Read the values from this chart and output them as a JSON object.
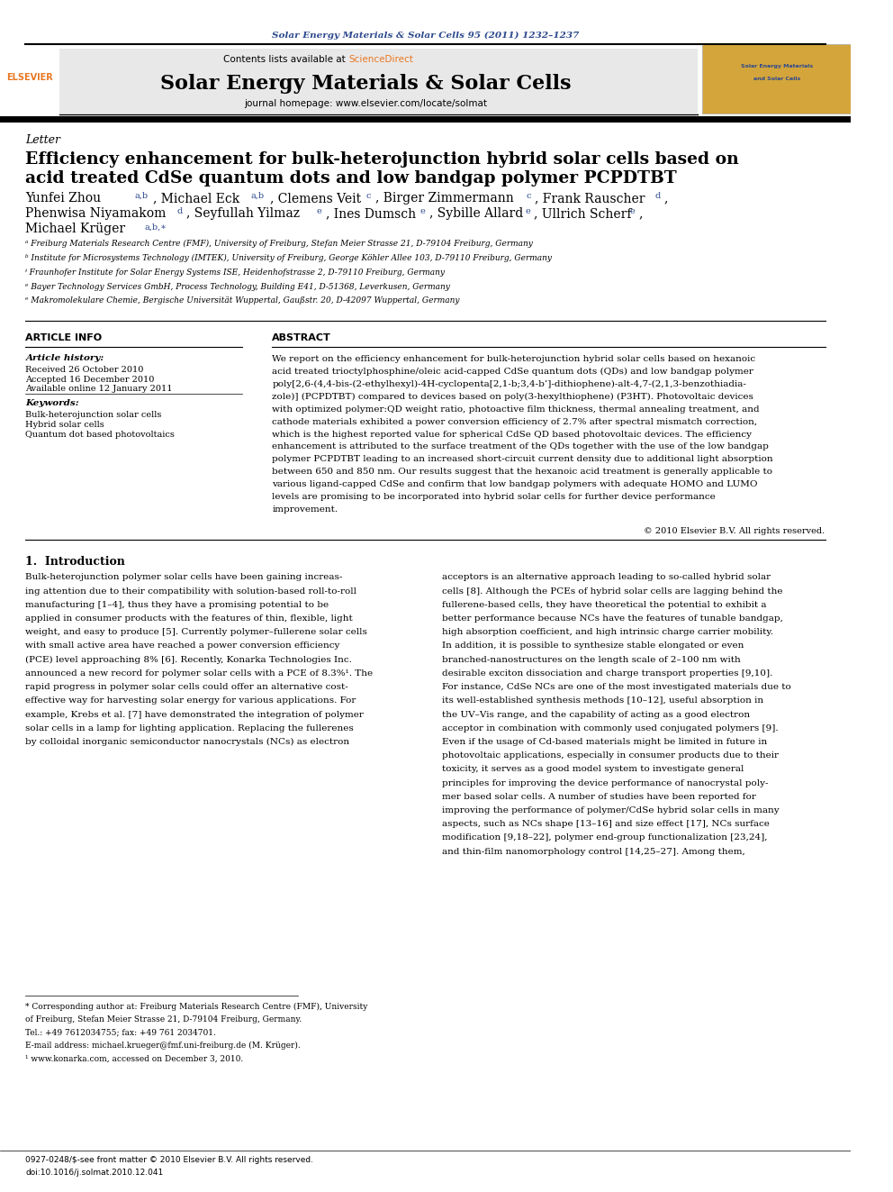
{
  "bg_color": "#ffffff",
  "page_width": 9.92,
  "page_height": 13.23,
  "journal_ref": "Solar Energy Materials & Solar Cells 95 (2011) 1232–1237",
  "journal_ref_color": "#2e4a8e",
  "contents_text": "Contents lists available at ",
  "sciencedirect_text": "ScienceDirect",
  "sciencedirect_color": "#e87722",
  "journal_name": "Solar Energy Materials & Solar Cells",
  "journal_homepage": "journal homepage: www.elsevier.com/locate/solmat",
  "journal_homepage_color": "#2e4a8e",
  "section_label": "Letter",
  "article_title_line1": "Efficiency enhancement for bulk-heterojunction hybrid solar cells based on",
  "article_title_line2": "acid treated CdSe quantum dots and low bandgap polymer PCPDTBT",
  "aff_a": "ᵃ Freiburg Materials Research Centre (FMF), University of Freiburg, Stefan Meier Strasse 21, D-79104 Freiburg, Germany",
  "aff_b": "ᵇ Institute for Microsystems Technology (IMTEK), University of Freiburg, George Köhler Allee 103, D-79110 Freiburg, Germany",
  "aff_c": "ᶤ Fraunhofer Institute for Solar Energy Systems ISE, Heidenhofstrasse 2, D-79110 Freiburg, Germany",
  "aff_d": "ᵉ Bayer Technology Services GmbH, Process Technology, Building E41, D-51368, Leverkusen, Germany",
  "aff_e": "ᵉ Makromolekulare Chemie, Bergische Universität Wuppertal, Gaußstr. 20, D-42097 Wuppertal, Germany",
  "article_info_title": "ARTICLE INFO",
  "article_history_title": "Article history:",
  "received": "Received 26 October 2010",
  "accepted": "Accepted 16 December 2010",
  "available": "Available online 12 January 2011",
  "keywords_title": "Keywords:",
  "kw1": "Bulk-heterojunction solar cells",
  "kw2": "Hybrid solar cells",
  "kw3": "Quantum dot based photovoltaics",
  "abstract_title": "ABSTRACT",
  "abs_lines": [
    "We report on the efficiency enhancement for bulk-heterojunction hybrid solar cells based on hexanoic",
    "acid treated trioctylphosphine/oleic acid-capped CdSe quantum dots (QDs) and low bandgap polymer",
    "poly[2,6-(4,4-bis-(2-ethylhexyl)-4H-cyclopenta[2,1-b;3,4-b’]-dithiophene)-alt-4,7-(2,1,3-benzothiadia-",
    "zole)] (PCPDTBT) compared to devices based on poly(3-hexylthiophene) (P3HT). Photovoltaic devices",
    "with optimized polymer:QD weight ratio, photoactive film thickness, thermal annealing treatment, and",
    "cathode materials exhibited a power conversion efficiency of 2.7% after spectral mismatch correction,",
    "which is the highest reported value for spherical CdSe QD based photovoltaic devices. The efficiency",
    "enhancement is attributed to the surface treatment of the QDs together with the use of the low bandgap",
    "polymer PCPDTBT leading to an increased short-circuit current density due to additional light absorption",
    "between 650 and 850 nm. Our results suggest that the hexanoic acid treatment is generally applicable to",
    "various ligand-capped CdSe and confirm that low bandgap polymers with adequate HOMO and LUMO",
    "levels are promising to be incorporated into hybrid solar cells for further device performance",
    "improvement."
  ],
  "copyright": "© 2010 Elsevier B.V. All rights reserved.",
  "intro_title": "1.  Introduction",
  "intro_col1_lines": [
    "Bulk-heterojunction polymer solar cells have been gaining increas-",
    "ing attention due to their compatibility with solution-based roll-to-roll",
    "manufacturing [1–4], thus they have a promising potential to be",
    "applied in consumer products with the features of thin, flexible, light",
    "weight, and easy to produce [5]. Currently polymer–fullerene solar cells",
    "with small active area have reached a power conversion efficiency",
    "(PCE) level approaching 8% [6]. Recently, Konarka Technologies Inc.",
    "announced a new record for polymer solar cells with a PCE of 8.3%¹. The",
    "rapid progress in polymer solar cells could offer an alternative cost-",
    "effective way for harvesting solar energy for various applications. For",
    "example, Krebs et al. [7] have demonstrated the integration of polymer",
    "solar cells in a lamp for lighting application. Replacing the fullerenes",
    "by colloidal inorganic semiconductor nanocrystals (NCs) as electron"
  ],
  "intro_col2_lines": [
    "acceptors is an alternative approach leading to so-called hybrid solar",
    "cells [8]. Although the PCEs of hybrid solar cells are lagging behind the",
    "fullerene-based cells, they have theoretical the potential to exhibit a",
    "better performance because NCs have the features of tunable bandgap,",
    "high absorption coefficient, and high intrinsic charge carrier mobility.",
    "In addition, it is possible to synthesize stable elongated or even",
    "branched-nanostructures on the length scale of 2–100 nm with",
    "desirable exciton dissociation and charge transport properties [9,10].",
    "For instance, CdSe NCs are one of the most investigated materials due to",
    "its well-established synthesis methods [10–12], useful absorption in",
    "the UV–Vis range, and the capability of acting as a good electron",
    "acceptor in combination with commonly used conjugated polymers [9].",
    "Even if the usage of Cd-based materials might be limited in future in",
    "photovoltaic applications, especially in consumer products due to their",
    "toxicity, it serves as a good model system to investigate general",
    "principles for improving the device performance of nanocrystal poly-",
    "mer based solar cells. A number of studies have been reported for",
    "improving the performance of polymer/CdSe hybrid solar cells in many",
    "aspects, such as NCs shape [13–16] and size effect [17], NCs surface",
    "modification [9,18–22], polymer end-group functionalization [23,24],",
    "and thin-film nanomorphology control [14,25–27]. Among them,"
  ],
  "bottom_left": "0927-0248/$-see front matter © 2010 Elsevier B.V. All rights reserved.",
  "bottom_doi": "doi:10.1016/j.solmat.2010.12.041"
}
